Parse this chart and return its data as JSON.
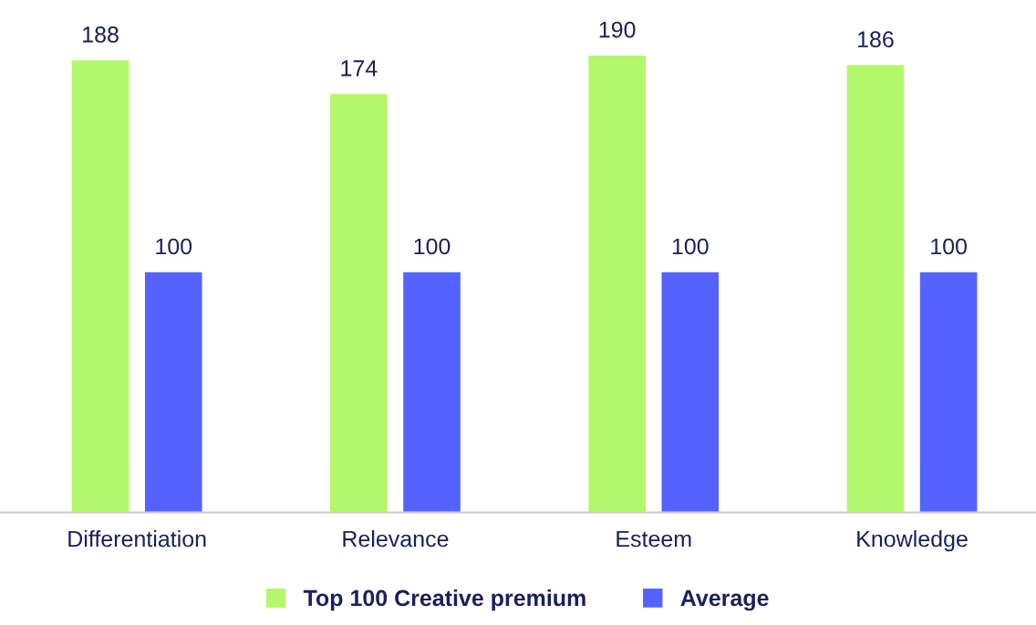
{
  "chart_data": {
    "type": "bar",
    "categories": [
      "Differentiation",
      "Relevance",
      "Esteem",
      "Knowledge"
    ],
    "series": [
      {
        "name": "Top 100 Creative premium",
        "color": "#b3f76b",
        "values": [
          188,
          174,
          190,
          186
        ]
      },
      {
        "name": "Average",
        "color": "#5463ff",
        "values": [
          100,
          100,
          100,
          100
        ]
      }
    ],
    "data_labels": true,
    "legend": "bottom",
    "grid": false
  }
}
